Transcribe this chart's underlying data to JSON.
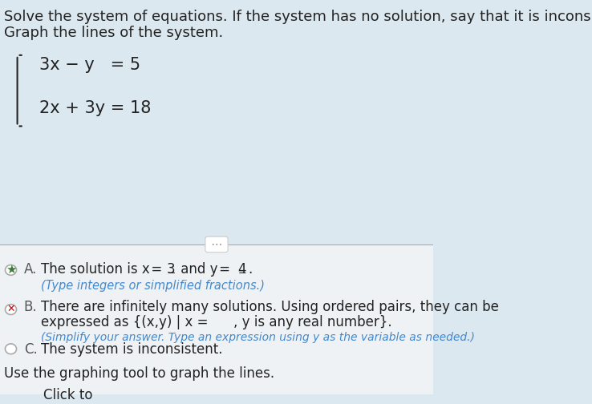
{
  "background_color": "#dce8f0",
  "body_bg": "#eef2f5",
  "title_line1": "Solve the system of equations. If the system has no solution, say that it is inconsiste",
  "title_line2": "Graph the lines of the system.",
  "eq1": "3x − y   = 5",
  "eq2": "2x + 3y = 18",
  "separator_color": "#aaaaaa",
  "dots_color": "#888888",
  "option_A_star_color": "#3a7a3a",
  "option_A_subtext": "(Type integers or simplified fractions.)",
  "option_B_x_color": "#cc0000",
  "option_B_text": "There are infinitely many solutions. Using ordered pairs, they can be",
  "option_B_text2": "expressed as {(x,y) | x =      , y is any real number}.",
  "option_B_subtext": "(Simplify your answer. Type an expression using y as the variable as needed.)",
  "option_C_text": "The system is inconsistent.",
  "footer_text": "Use the graphing tool to graph the lines.",
  "click_text": "Click to",
  "text_color": "#222222",
  "label_color": "#555555",
  "underline_color": "#4488cc",
  "font_size_header": 13,
  "font_size_body": 12,
  "font_size_eq": 15
}
